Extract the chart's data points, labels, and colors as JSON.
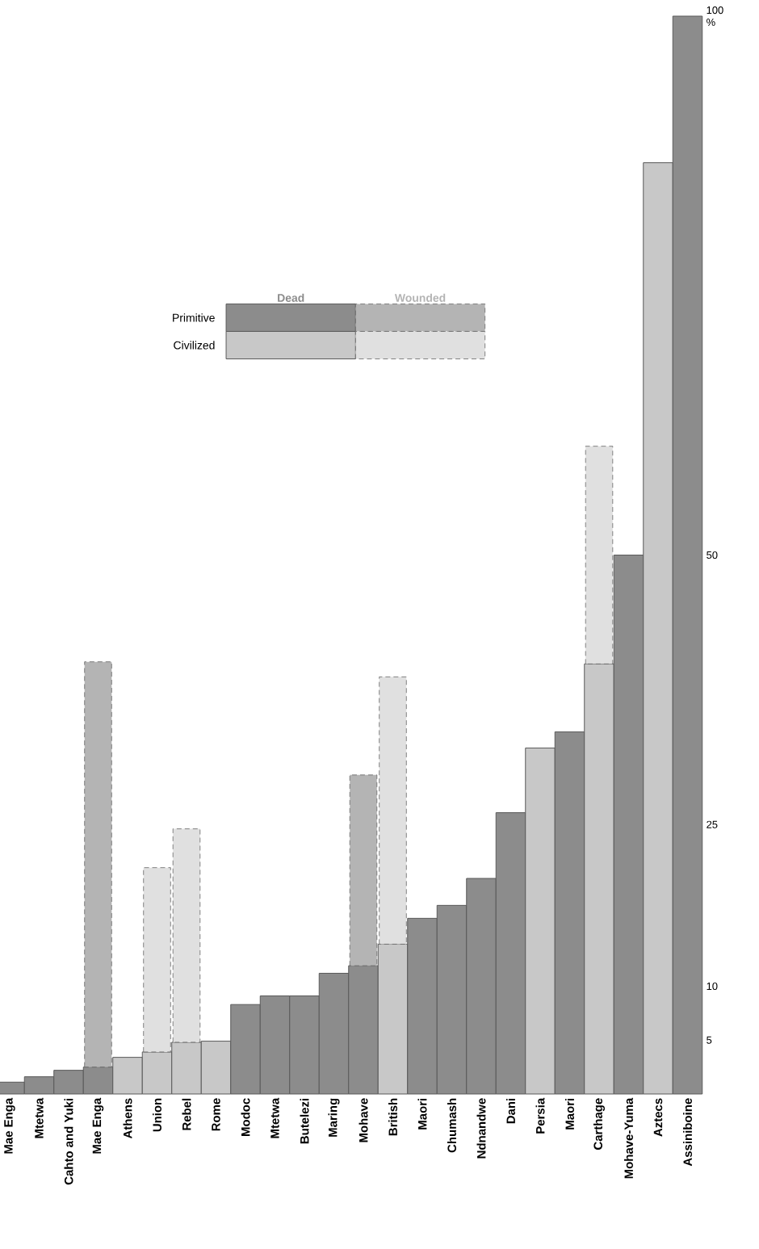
{
  "chart_data": {
    "type": "bar",
    "stacked": true,
    "categories": [
      "Mae Enga",
      "Mtetwa",
      "Cahto and Yuki",
      "Mae Enga",
      "Athens",
      "Union",
      "Rebel",
      "Rome",
      "Modoc",
      "Mtetwa",
      "Butelezi",
      "Maring",
      "Mohave",
      "British",
      "Maori",
      "Chumash",
      "Ndnandwe",
      "Dani",
      "Persia",
      "Maori",
      "Carthage",
      "Mohave-Yuma",
      "Aztecs",
      "Assiniboine"
    ],
    "series": [
      {
        "name": "Dead",
        "colors": [
          "#8c8c8c",
          "#8c8c8c",
          "#8c8c8c",
          "#8c8c8c",
          "#c8c8c8",
          "#c8c8c8",
          "#c8c8c8",
          "#c8c8c8",
          "#8c8c8c",
          "#8c8c8c",
          "#8c8c8c",
          "#8c8c8c",
          "#8c8c8c",
          "#c8c8c8",
          "#8c8c8c",
          "#8c8c8c",
          "#8c8c8c",
          "#8c8c8c",
          "#c8c8c8",
          "#8c8c8c",
          "#c8c8c8",
          "#8c8c8c",
          "#c8c8c8",
          "#8c8c8c"
        ],
        "values": [
          1.1,
          1.6,
          2.2,
          2.5,
          3.4,
          3.9,
          4.8,
          4.9,
          8.3,
          9.1,
          9.1,
          11.2,
          11.9,
          13.9,
          16.3,
          17.5,
          20.0,
          26.1,
          32.1,
          33.6,
          39.9,
          50.0,
          86.4,
          100
        ]
      },
      {
        "name": "Wounded",
        "colors": [
          "#b4b4b4",
          "#b4b4b4",
          "#b4b4b4",
          "#b4b4b4",
          "#e0e0e0",
          "#e0e0e0",
          "#e0e0e0",
          "#e0e0e0",
          "#b4b4b4",
          "#b4b4b4",
          "#b4b4b4",
          "#b4b4b4",
          "#b4b4b4",
          "#e0e0e0",
          "#b4b4b4",
          "#b4b4b4",
          "#b4b4b4",
          "#b4b4b4",
          "#e0e0e0",
          "#b4b4b4",
          "#e0e0e0",
          "#b4b4b4",
          "#e0e0e0",
          "#b4b4b4"
        ],
        "values": [
          null,
          null,
          null,
          37.6,
          null,
          17.1,
          19.8,
          null,
          null,
          null,
          null,
          null,
          17.7,
          24.8,
          null,
          null,
          null,
          null,
          null,
          null,
          20.2,
          null,
          null,
          null
        ]
      }
    ],
    "annotations": [
      "Primitive",
      "Civilized"
    ],
    "ylim": [
      0,
      100
    ],
    "yticks": [
      5,
      10,
      25,
      50,
      {
        "value": 100,
        "label": "100 %"
      }
    ],
    "legend": "top left"
  }
}
